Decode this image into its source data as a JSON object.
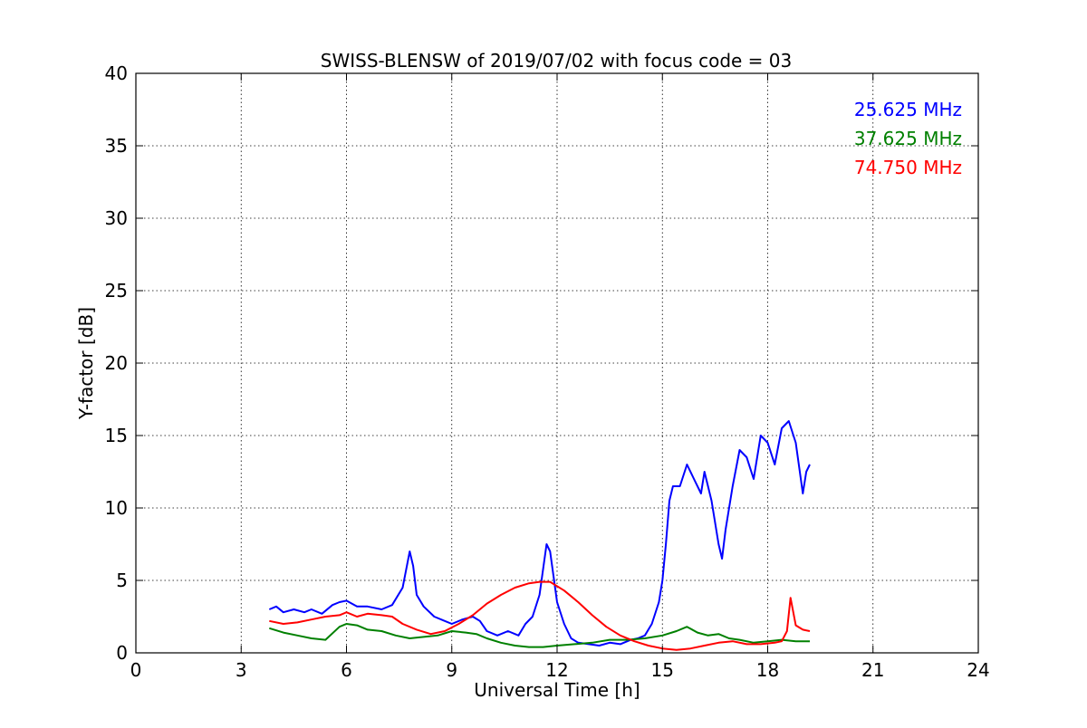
{
  "chart_data": {
    "type": "line",
    "title": "SWISS-BLENSW of 2019/07/02 with focus code = 03",
    "xlabel": "Universal Time [h]",
    "ylabel": "Y-factor [dB]",
    "xlim": [
      0,
      24
    ],
    "ylim": [
      0,
      40
    ],
    "xticks": [
      0,
      3,
      6,
      9,
      12,
      15,
      18,
      21,
      24
    ],
    "yticks": [
      0,
      5,
      10,
      15,
      20,
      25,
      30,
      35,
      40
    ],
    "xtick_labels": [
      "0",
      "3",
      "6",
      "9",
      "12",
      "15",
      "18",
      "21",
      "24"
    ],
    "ytick_labels": [
      "0",
      "5",
      "10",
      "15",
      "20",
      "25",
      "30",
      "35",
      "40"
    ],
    "grid": true,
    "legend_position": "top-right",
    "series": [
      {
        "name": "25.625 MHz",
        "color": "#0000ff",
        "x": [
          3.8,
          4.0,
          4.2,
          4.5,
          4.8,
          5.0,
          5.3,
          5.6,
          5.8,
          6.0,
          6.3,
          6.6,
          7.0,
          7.3,
          7.6,
          7.8,
          7.9,
          8.0,
          8.2,
          8.5,
          8.8,
          9.0,
          9.3,
          9.6,
          9.8,
          10.0,
          10.3,
          10.6,
          10.9,
          11.1,
          11.3,
          11.5,
          11.7,
          11.8,
          12.0,
          12.2,
          12.4,
          12.6,
          12.9,
          13.2,
          13.5,
          13.8,
          14.1,
          14.3,
          14.5,
          14.7,
          14.9,
          15.0,
          15.1,
          15.2,
          15.3,
          15.5,
          15.7,
          15.9,
          16.1,
          16.2,
          16.4,
          16.6,
          16.7,
          16.8,
          17.0,
          17.2,
          17.4,
          17.6,
          17.8,
          18.0,
          18.2,
          18.4,
          18.6,
          18.8,
          19.0,
          19.1,
          19.2
        ],
        "y": [
          3.0,
          3.2,
          2.8,
          3.0,
          2.8,
          3.0,
          2.7,
          3.3,
          3.5,
          3.6,
          3.2,
          3.2,
          3.0,
          3.3,
          4.5,
          7.0,
          6.0,
          4.0,
          3.2,
          2.5,
          2.2,
          2.0,
          2.3,
          2.5,
          2.2,
          1.5,
          1.2,
          1.5,
          1.2,
          2.0,
          2.5,
          4.0,
          7.5,
          7.0,
          3.5,
          2.0,
          1.0,
          0.7,
          0.6,
          0.5,
          0.7,
          0.6,
          0.9,
          1.0,
          1.2,
          2.0,
          3.5,
          5.0,
          7.5,
          10.5,
          11.5,
          11.5,
          13.0,
          12.0,
          11.0,
          12.5,
          10.5,
          7.5,
          6.5,
          8.5,
          11.5,
          14.0,
          13.5,
          12.0,
          15.0,
          14.5,
          13.0,
          15.5,
          16.0,
          14.5,
          11.0,
          12.5,
          13.0
        ]
      },
      {
        "name": "37.625 MHz",
        "color": "#008000",
        "x": [
          3.8,
          4.2,
          4.6,
          5.0,
          5.4,
          5.8,
          6.0,
          6.3,
          6.6,
          7.0,
          7.4,
          7.8,
          8.2,
          8.6,
          9.0,
          9.4,
          9.7,
          10.0,
          10.4,
          10.8,
          11.2,
          11.6,
          12.0,
          12.5,
          13.0,
          13.5,
          14.0,
          14.5,
          15.0,
          15.4,
          15.7,
          16.0,
          16.3,
          16.6,
          16.9,
          17.2,
          17.6,
          18.0,
          18.4,
          18.8,
          19.2
        ],
        "y": [
          1.7,
          1.4,
          1.2,
          1.0,
          0.9,
          1.8,
          2.0,
          1.9,
          1.6,
          1.5,
          1.2,
          1.0,
          1.1,
          1.2,
          1.5,
          1.4,
          1.3,
          1.0,
          0.7,
          0.5,
          0.4,
          0.4,
          0.5,
          0.6,
          0.7,
          0.9,
          0.9,
          1.0,
          1.2,
          1.5,
          1.8,
          1.4,
          1.2,
          1.3,
          1.0,
          0.9,
          0.7,
          0.8,
          0.9,
          0.8,
          0.8
        ]
      },
      {
        "name": "74.750 MHz",
        "color": "#ff0000",
        "x": [
          3.8,
          4.2,
          4.6,
          5.0,
          5.4,
          5.8,
          6.0,
          6.3,
          6.6,
          7.0,
          7.3,
          7.6,
          8.0,
          8.4,
          8.8,
          9.2,
          9.6,
          10.0,
          10.4,
          10.8,
          11.2,
          11.5,
          11.8,
          12.2,
          12.6,
          13.0,
          13.4,
          13.8,
          14.2,
          14.6,
          15.0,
          15.4,
          15.8,
          16.2,
          16.6,
          17.0,
          17.4,
          17.8,
          18.2,
          18.4,
          18.55,
          18.65,
          18.8,
          19.0,
          19.2
        ],
        "y": [
          2.2,
          2.0,
          2.1,
          2.3,
          2.5,
          2.6,
          2.8,
          2.5,
          2.7,
          2.6,
          2.5,
          2.0,
          1.6,
          1.3,
          1.5,
          2.0,
          2.6,
          3.4,
          4.0,
          4.5,
          4.8,
          4.9,
          4.9,
          4.3,
          3.5,
          2.6,
          1.8,
          1.2,
          0.8,
          0.5,
          0.3,
          0.2,
          0.3,
          0.5,
          0.7,
          0.8,
          0.6,
          0.6,
          0.7,
          0.8,
          1.5,
          3.8,
          1.9,
          1.6,
          1.5
        ]
      }
    ]
  }
}
